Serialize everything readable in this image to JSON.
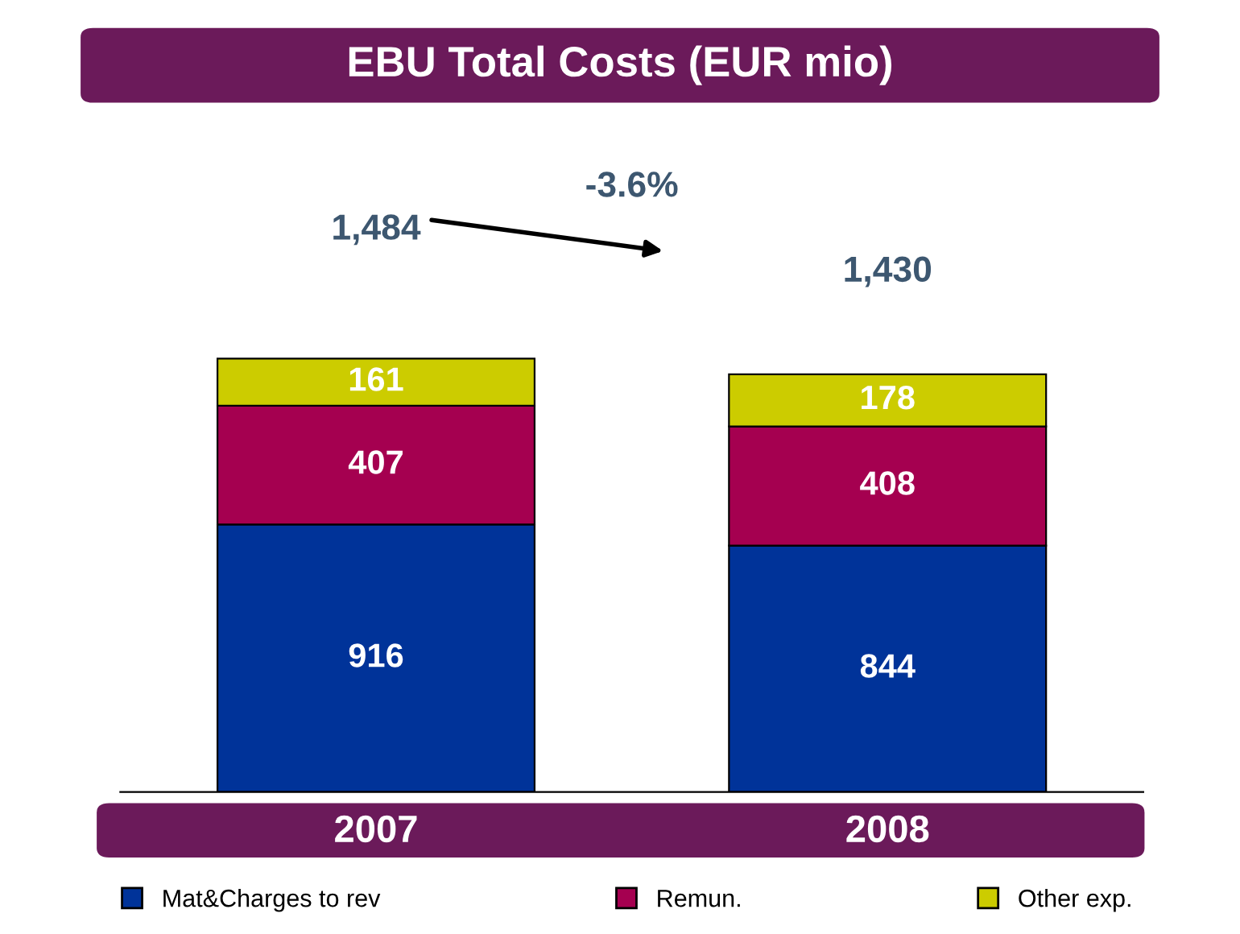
{
  "chart_data": {
    "type": "bar",
    "title": "EBU Total Costs (EUR mio)",
    "stacked": true,
    "categories": [
      "2007",
      "2008"
    ],
    "series": [
      {
        "name": "Mat&Charges to rev",
        "color": "#003399",
        "values": [
          916,
          844
        ]
      },
      {
        "name": "Remun.",
        "color": "#a50050",
        "values": [
          407,
          408
        ]
      },
      {
        "name": "Other exp.",
        "color": "#cccc00",
        "values": [
          161,
          178
        ]
      }
    ],
    "data_labels": true,
    "totals": [
      "1,484",
      "1,430"
    ],
    "annotations": [
      "-3.6%"
    ],
    "legend": "bottom",
    "grid": false
  }
}
